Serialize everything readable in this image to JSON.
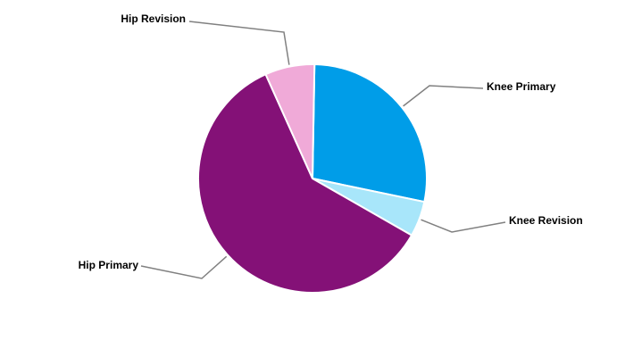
{
  "chart_data": {
    "type": "pie",
    "categories": [
      "Knee Primary",
      "Knee Revision",
      "Hip Primary",
      "Hip Revision"
    ],
    "values": [
      28,
      5,
      60,
      7
    ],
    "colors": [
      "#009de8",
      "#a8e6fa",
      "#841177",
      "#f0aad8"
    ],
    "start_angle": 1
  }
}
